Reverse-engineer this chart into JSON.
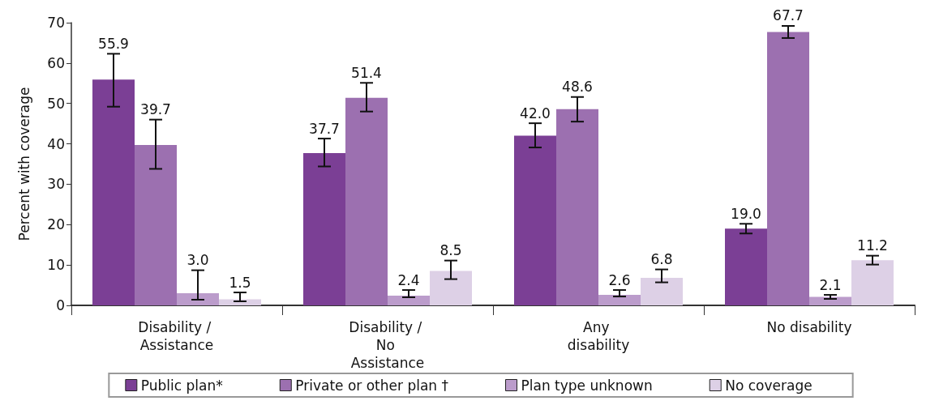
{
  "chart_data": {
    "type": "bar",
    "ylabel": "Percent with coverage",
    "categories": [
      "Disability / Assistance",
      "Disability / No Assistance",
      "Any disability",
      "No disability"
    ],
    "series": [
      {
        "name": "Public plan*",
        "color": "#7b3f95",
        "values": [
          55.9,
          37.7,
          42,
          19
        ],
        "value_labels": [
          "55.9",
          "37.7",
          "42.0",
          "19.0"
        ],
        "errors": [
          [
            49.2,
            62.3
          ],
          [
            34.4,
            41.3
          ],
          [
            39.1,
            45.1
          ],
          [
            17.8,
            20.2
          ]
        ]
      },
      {
        "name": "Private or other plan †",
        "color": "#9c70b0",
        "values": [
          39.7,
          51.4,
          48.6,
          67.7
        ],
        "value_labels": [
          "39.7",
          "51.4",
          "48.6",
          "67.7"
        ],
        "errors": [
          [
            33.8,
            46.0
          ],
          [
            48.0,
            55.1
          ],
          [
            45.5,
            51.6
          ],
          [
            66.2,
            69.2
          ]
        ]
      },
      {
        "name": "Plan type unknown",
        "color": "#bb9ccb",
        "values": [
          3,
          2.4,
          2.6,
          2.1
        ],
        "value_labels": [
          "3.0",
          "2.4",
          "2.6",
          "2.1"
        ],
        "errors": [
          [
            1.4,
            8.7
          ],
          [
            2.0,
            3.8
          ],
          [
            2.2,
            3.8
          ],
          [
            1.6,
            2.6
          ]
        ]
      },
      {
        "name": "No coverage",
        "color": "#ddd0e6",
        "values": [
          1.5,
          8.5,
          6.8,
          11.2
        ],
        "value_labels": [
          "1.5",
          "8.5",
          "6.8",
          "11.2"
        ],
        "errors": [
          [
            1.0,
            3.2
          ],
          [
            6.5,
            11.1
          ],
          [
            5.7,
            8.9
          ],
          [
            10.1,
            12.3
          ]
        ]
      }
    ],
    "ylim": [
      0,
      70
    ],
    "yticks": [
      0,
      10,
      20,
      30,
      40,
      50,
      60,
      70
    ],
    "grid": false,
    "legend": "bottom"
  }
}
